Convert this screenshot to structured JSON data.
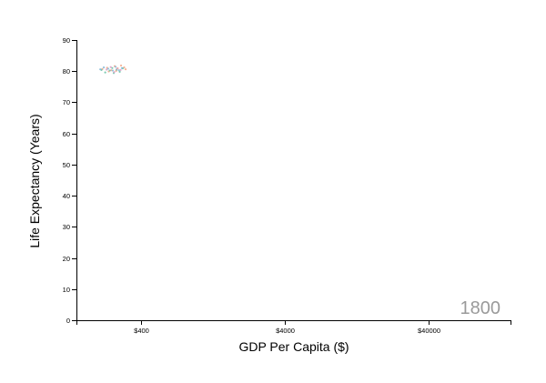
{
  "chart_data": {
    "type": "scatter",
    "xlabel": "GDP Per Capita ($)",
    "ylabel": "Life Expectancy (Years)",
    "x_scale": "log",
    "xlim": [
      142,
      150000
    ],
    "ylim": [
      0,
      90
    ],
    "x_ticks": [
      {
        "value": 400,
        "label": "$400"
      },
      {
        "value": 4000,
        "label": "$4000"
      },
      {
        "value": 40000,
        "label": "$40000"
      }
    ],
    "y_ticks": [
      {
        "value": 0,
        "label": "0"
      },
      {
        "value": 10,
        "label": "10"
      },
      {
        "value": 20,
        "label": "20"
      },
      {
        "value": 30,
        "label": "30"
      },
      {
        "value": 40,
        "label": "40"
      },
      {
        "value": 50,
        "label": "50"
      },
      {
        "value": 60,
        "label": "60"
      },
      {
        "value": 70,
        "label": "70"
      },
      {
        "value": 80,
        "label": "80"
      },
      {
        "value": 90,
        "label": "90"
      }
    ],
    "year_label": "1800",
    "grid": false,
    "series": [
      {
        "color": "#f4a582",
        "points": [
          {
            "x": 215,
            "y": 80.7
          },
          {
            "x": 232,
            "y": 81.1
          },
          {
            "x": 248,
            "y": 80.3
          },
          {
            "x": 262,
            "y": 81.6
          },
          {
            "x": 275,
            "y": 80.9
          },
          {
            "x": 290,
            "y": 81.8
          },
          {
            "x": 305,
            "y": 81.2
          },
          {
            "x": 238,
            "y": 79.9
          },
          {
            "x": 268,
            "y": 80.1
          },
          {
            "x": 312,
            "y": 80.6
          }
        ]
      },
      {
        "color": "#66c2a5",
        "points": [
          {
            "x": 212,
            "y": 80.4
          },
          {
            "x": 225,
            "y": 79.6
          },
          {
            "x": 242,
            "y": 80.2
          },
          {
            "x": 258,
            "y": 79.4
          },
          {
            "x": 270,
            "y": 80.5
          },
          {
            "x": 284,
            "y": 79.8
          },
          {
            "x": 298,
            "y": 80.9
          },
          {
            "x": 252,
            "y": 81.0
          }
        ]
      },
      {
        "color": "#7fb7d8",
        "points": [
          {
            "x": 208,
            "y": 80.6
          },
          {
            "x": 220,
            "y": 81.2
          },
          {
            "x": 236,
            "y": 80.8
          },
          {
            "x": 254,
            "y": 80.2
          },
          {
            "x": 266,
            "y": 81.4
          },
          {
            "x": 280,
            "y": 80.3
          },
          {
            "x": 294,
            "y": 81.0
          }
        ]
      },
      {
        "color": "#d9a0c8",
        "points": [
          {
            "x": 230,
            "y": 80.5
          },
          {
            "x": 246,
            "y": 81.3
          },
          {
            "x": 272,
            "y": 80.8
          },
          {
            "x": 288,
            "y": 80.4
          },
          {
            "x": 260,
            "y": 79.7
          }
        ]
      }
    ]
  }
}
